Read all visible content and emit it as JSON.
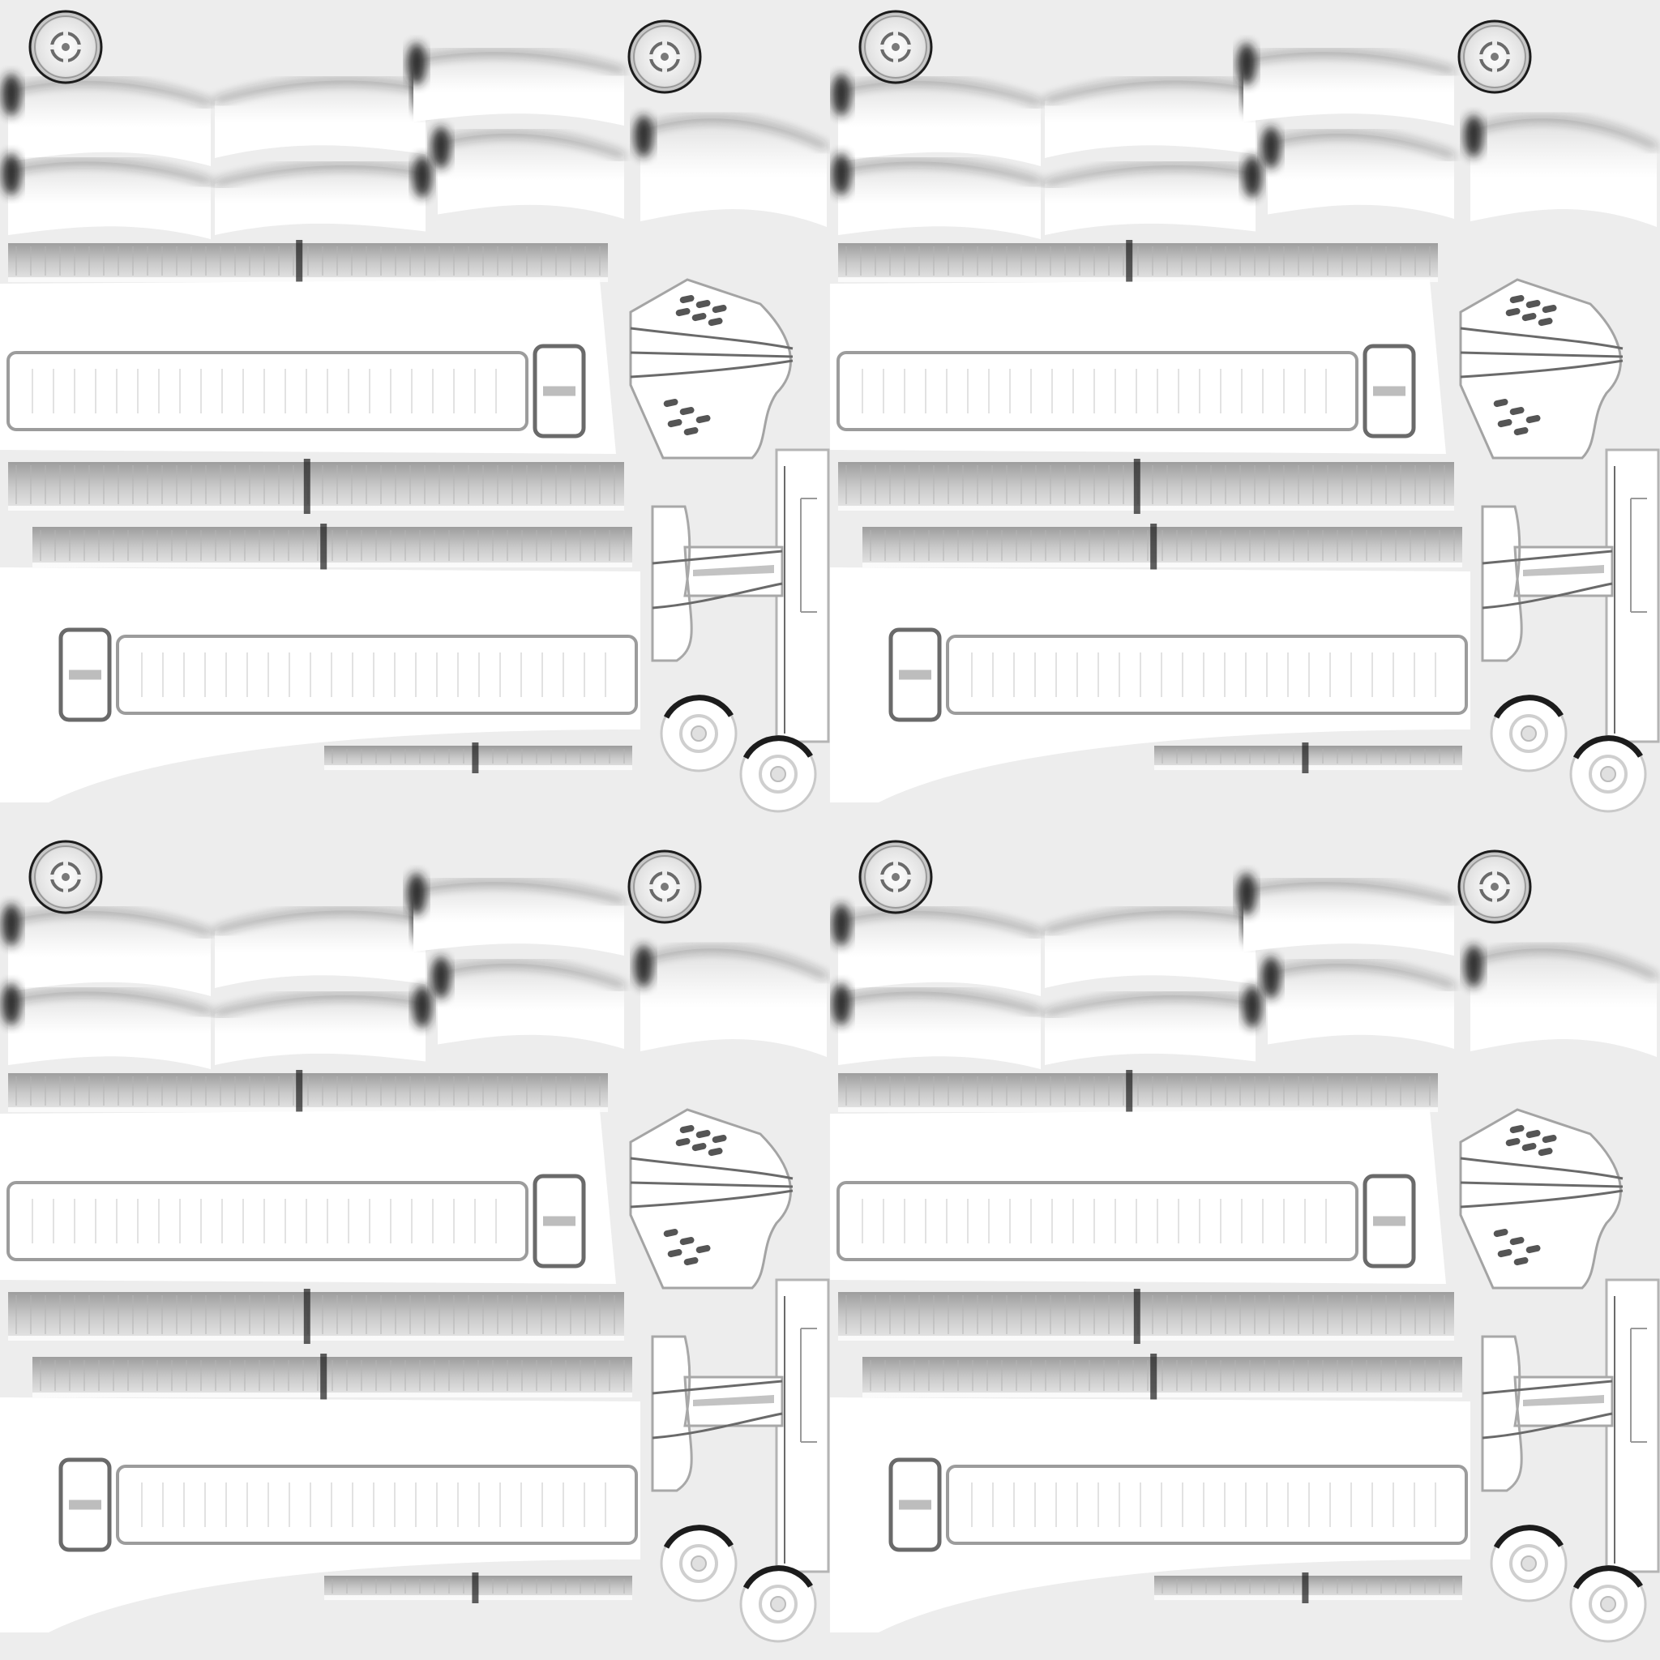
{
  "texture": {
    "kind": "ambient-occlusion-bake",
    "tiling": {
      "columns": 2,
      "rows": 2
    },
    "palette": {
      "background": "#ededed",
      "highlight": "#ffffff",
      "shadow": "#1c1c1c",
      "midtone": "#8f8f8f",
      "outline": "#6a6a6a"
    },
    "tile_parts": [
      "bolt-icon",
      "bolt-icon",
      "fabric-fold",
      "fabric-fold",
      "fabric-fold",
      "fabric-fold",
      "fabric-fold",
      "fabric-fold",
      "sleeve-strip",
      "sleeve-strip",
      "sleeve-strip",
      "sleeve-strip",
      "strap-panel",
      "strap-panel",
      "vent-patch",
      "side-rail",
      "seam-piece",
      "wheel-icon",
      "wheel-icon"
    ]
  }
}
